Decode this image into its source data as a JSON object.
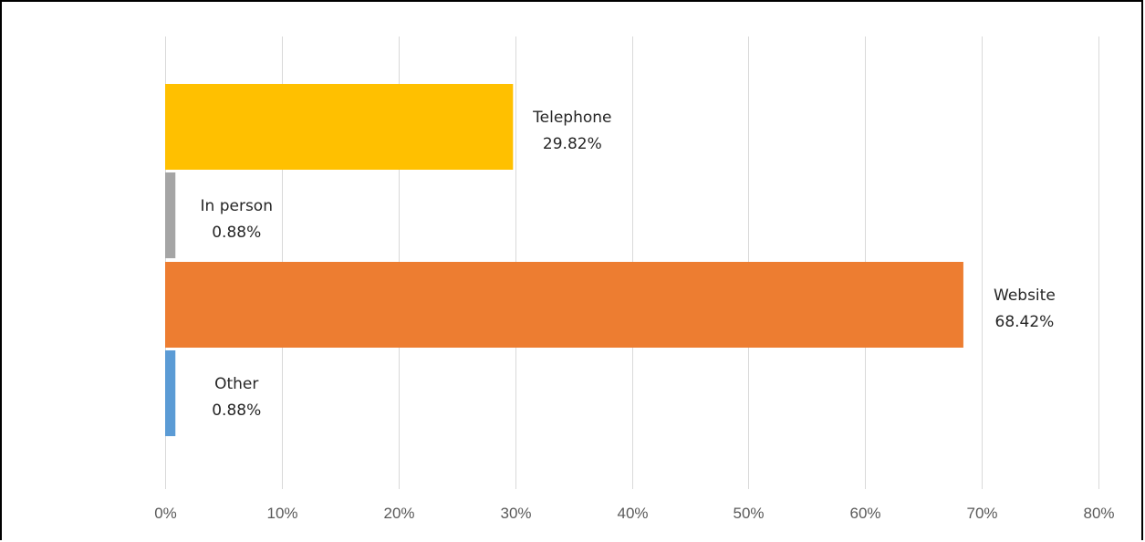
{
  "chart_data": {
    "type": "bar",
    "orientation": "horizontal",
    "categories": [
      "Telephone",
      "In person",
      "Website",
      "Other"
    ],
    "values": [
      29.82,
      0.88,
      68.42,
      0.88
    ],
    "value_labels": [
      "29.82%",
      "0.88%",
      "68.42%",
      "0.88%"
    ],
    "colors": [
      "#FFC000",
      "#A5A5A5",
      "#ED7D31",
      "#5B9BD5"
    ],
    "xlim": [
      0,
      80
    ],
    "x_ticks": [
      0,
      10,
      20,
      30,
      40,
      50,
      60,
      70,
      80
    ],
    "x_tick_labels": [
      "0%",
      "10%",
      "20%",
      "30%",
      "40%",
      "50%",
      "60%",
      "70%",
      "80%"
    ],
    "grid": true,
    "title": "",
    "xlabel": "",
    "ylabel": "",
    "legend": "none"
  }
}
